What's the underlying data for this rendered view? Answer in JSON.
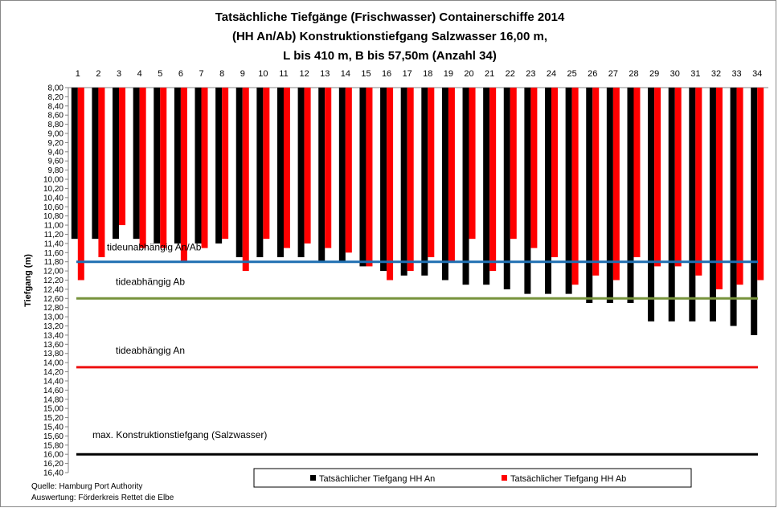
{
  "chart_data": {
    "type": "bar",
    "title_lines": [
      "Tatsächliche Tiefgänge (Frischwasser) Containerschiffe 2014",
      "(HH An/Ab) Konstruktionstiefgang Salzwasser 16,00 m,",
      "L bis 410 m, B bis 57,50m (Anzahl 34)"
    ],
    "ylabel": "Tiefgang (m)",
    "ylim": [
      8.0,
      16.4
    ],
    "y_inverted": true,
    "y_ticks": [
      "8,00",
      "8,20",
      "8,40",
      "8,60",
      "8,80",
      "9,00",
      "9,20",
      "9,40",
      "9,60",
      "9,80",
      "10,00",
      "10,20",
      "10,40",
      "10,60",
      "10,80",
      "11,00",
      "11,20",
      "11,40",
      "11,60",
      "11,80",
      "12,00",
      "12,20",
      "12,40",
      "12,60",
      "12,80",
      "13,00",
      "13,20",
      "13,40",
      "13,60",
      "13,80",
      "14,00",
      "14,20",
      "14,40",
      "14,60",
      "14,80",
      "15,00",
      "15,20",
      "15,40",
      "15,60",
      "15,80",
      "16,00",
      "16,20",
      "16,40"
    ],
    "categories": [
      "1",
      "2",
      "3",
      "4",
      "5",
      "6",
      "7",
      "8",
      "9",
      "10",
      "11",
      "12",
      "13",
      "14",
      "15",
      "16",
      "17",
      "18",
      "19",
      "20",
      "21",
      "22",
      "23",
      "24",
      "25",
      "26",
      "27",
      "28",
      "29",
      "30",
      "31",
      "32",
      "33",
      "34"
    ],
    "series": [
      {
        "name": "Tatsächlicher Tiefgang HH An",
        "color": "#000000",
        "values": [
          11.3,
          11.3,
          11.3,
          11.3,
          11.4,
          11.4,
          11.4,
          11.4,
          11.7,
          11.7,
          11.7,
          11.7,
          11.8,
          11.8,
          11.9,
          12.0,
          12.1,
          12.1,
          12.2,
          12.3,
          12.3,
          12.4,
          12.5,
          12.5,
          12.5,
          12.7,
          12.7,
          12.7,
          13.1,
          13.1,
          13.1,
          13.1,
          13.2,
          13.4
        ]
      },
      {
        "name": "Tatsächlicher Tiefgang HH Ab",
        "color": "#ff0000",
        "values": [
          12.2,
          11.7,
          11.0,
          11.5,
          11.5,
          11.8,
          11.5,
          11.3,
          12.0,
          11.3,
          11.5,
          11.4,
          11.5,
          11.6,
          11.9,
          12.2,
          12.0,
          11.7,
          11.8,
          11.3,
          12.0,
          11.3,
          11.5,
          11.7,
          12.3,
          12.1,
          12.2,
          11.7,
          11.9,
          11.9,
          12.1,
          12.4,
          12.3,
          12.2
        ]
      }
    ],
    "reference_lines": [
      {
        "label": "tideunabhängig An/Ab",
        "value": 11.8,
        "color": "#1f6fb2"
      },
      {
        "label": "tideabhängig Ab",
        "value": 12.6,
        "color": "#77933c"
      },
      {
        "label": "tideabhängig An",
        "value": 14.1,
        "color": "#ee1111"
      },
      {
        "label": "max. Konstruktionstiefgang (Salzwasser)",
        "value": 16.0,
        "color": "#000000"
      }
    ],
    "legend_position": "bottom"
  },
  "footer": {
    "source": "Quelle: Hamburg Port Authority",
    "evaluation": "Auswertung: Förderkreis Rettet die Elbe"
  }
}
